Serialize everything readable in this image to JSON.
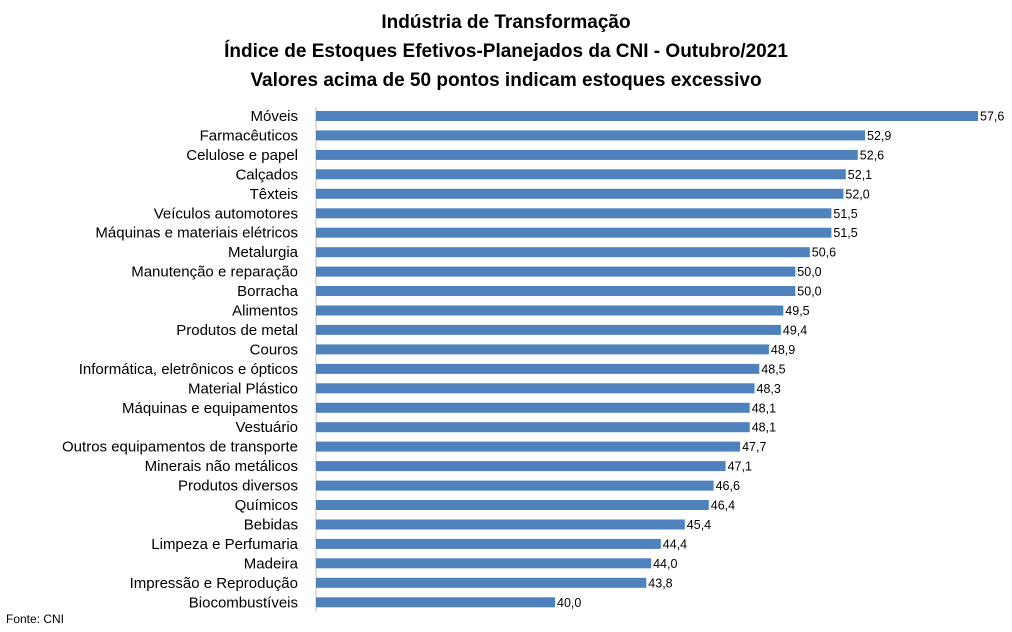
{
  "chart_data": {
    "type": "bar",
    "orientation": "horizontal",
    "title": [
      "Indústria de Transformação",
      "Índice de Estoques Efetivos-Planejados da CNI - Outubro/2021",
      "Valores acima de 50 pontos indicam estoques excessivo"
    ],
    "xlabel": "",
    "ylabel": "",
    "xlim": [
      40,
      57.6
    ],
    "grid": false,
    "bar_color": "#4F81BD",
    "categories": [
      "Móveis",
      "Farmacêuticos",
      "Celulose e papel",
      "Calçados",
      "Têxteis",
      "Veículos automotores",
      "Máquinas e materiais elétricos",
      "Metalurgia",
      "Manutenção e reparação",
      "Borracha",
      "Alimentos",
      "Produtos de metal",
      "Couros",
      "Informática, eletrônicos e ópticos",
      "Material Plástico",
      "Máquinas e equipamentos",
      "Vestuário",
      "Outros equipamentos de transporte",
      "Minerais não metálicos",
      "Produtos diversos",
      "Químicos",
      "Bebidas",
      "Limpeza e Perfumaria",
      "Madeira",
      "Impressão e Reprodução ",
      "Biocombustíveis"
    ],
    "values": [
      57.6,
      52.9,
      52.6,
      52.1,
      52.0,
      51.5,
      51.5,
      50.6,
      50.0,
      50.0,
      49.5,
      49.4,
      48.9,
      48.5,
      48.3,
      48.1,
      48.1,
      47.7,
      47.1,
      46.6,
      46.4,
      45.4,
      44.4,
      44.0,
      43.8,
      40.0
    ],
    "value_labels": [
      "57,6",
      "52,9",
      "52,6",
      "52,1",
      "52,0",
      "51,5",
      "51,5",
      "50,6",
      "50,0",
      "50,0",
      "49,5",
      "49,4",
      "48,9",
      "48,5",
      "48,3",
      "48,1",
      "48,1",
      "47,7",
      "47,1",
      "46,6",
      "46,4",
      "45,4",
      "44,4",
      "44,0",
      "43,8",
      "40,0"
    ]
  },
  "source": "Fonte: CNI"
}
